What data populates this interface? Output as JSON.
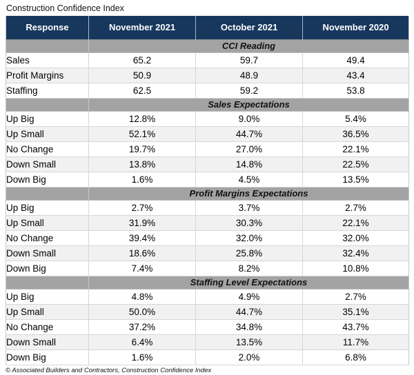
{
  "title": "Construction Confidence Index",
  "footer": "© Associated Builders and Contractors, Construction Confidence Index",
  "colors": {
    "header_bg": "#17375d",
    "header_text": "#ffffff",
    "section_band_bg": "#a3a3a3",
    "stripe_row_bg": "#f1f1f1",
    "grid_line": "#d6d6d6"
  },
  "chart_data": {
    "type": "table",
    "title": "Construction Confidence Index",
    "columns": [
      "Response",
      "November 2021",
      "October 2021",
      "November 2020"
    ],
    "sections": [
      {
        "header": "CCI Reading",
        "rows": [
          [
            "Sales",
            "65.2",
            "59.7",
            "49.4"
          ],
          [
            "Profit Margins",
            "50.9",
            "48.9",
            "43.4"
          ],
          [
            "Staffing",
            "62.5",
            "59.2",
            "53.8"
          ]
        ]
      },
      {
        "header": "Sales Expectations",
        "rows": [
          [
            "Up Big",
            "12.8%",
            "9.0%",
            "5.4%"
          ],
          [
            "Up Small",
            "52.1%",
            "44.7%",
            "36.5%"
          ],
          [
            "No Change",
            "19.7%",
            "27.0%",
            "22.1%"
          ],
          [
            "Down Small",
            "13.8%",
            "14.8%",
            "22.5%"
          ],
          [
            "Down Big",
            "1.6%",
            "4.5%",
            "13.5%"
          ]
        ]
      },
      {
        "header": "Profit Margins Expectations",
        "rows": [
          [
            "Up Big",
            "2.7%",
            "3.7%",
            "2.7%"
          ],
          [
            "Up Small",
            "31.9%",
            "30.3%",
            "22.1%"
          ],
          [
            "No Change",
            "39.4%",
            "32.0%",
            "32.0%"
          ],
          [
            "Down Small",
            "18.6%",
            "25.8%",
            "32.4%"
          ],
          [
            "Down Big",
            "7.4%",
            "8.2%",
            "10.8%"
          ]
        ]
      },
      {
        "header": "Staffing Level Expectations",
        "rows": [
          [
            "Up Big",
            "4.8%",
            "4.9%",
            "2.7%"
          ],
          [
            "Up Small",
            "50.0%",
            "44.7%",
            "35.1%"
          ],
          [
            "No Change",
            "37.2%",
            "34.8%",
            "43.7%"
          ],
          [
            "Down Small",
            "6.4%",
            "13.5%",
            "11.7%"
          ],
          [
            "Down Big",
            "1.6%",
            "2.0%",
            "6.8%"
          ]
        ]
      }
    ]
  }
}
